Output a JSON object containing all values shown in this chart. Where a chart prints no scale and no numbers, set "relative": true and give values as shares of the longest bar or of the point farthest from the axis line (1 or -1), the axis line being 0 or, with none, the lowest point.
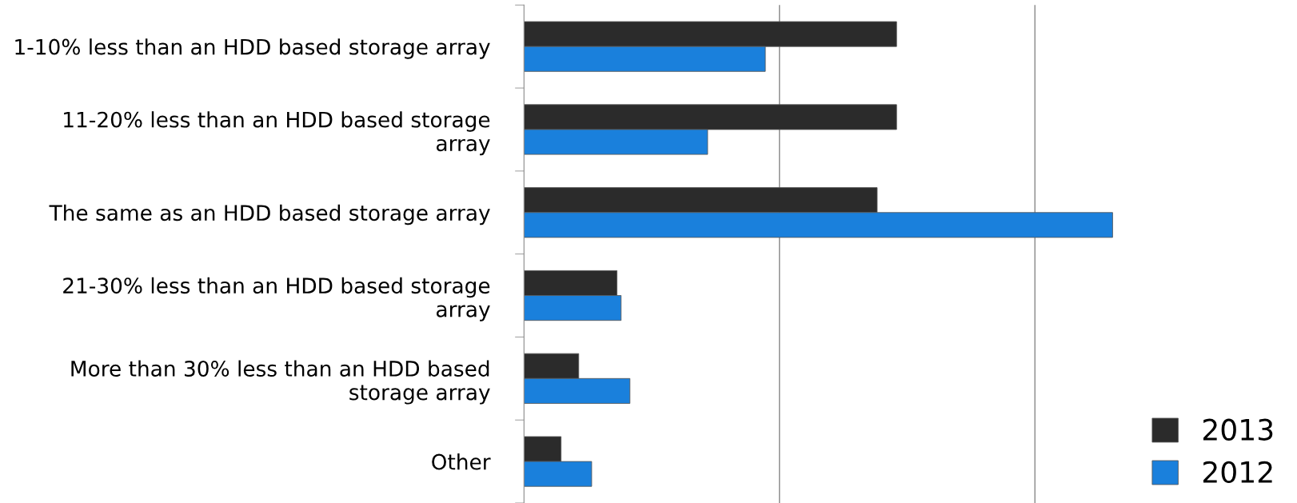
{
  "chart_data": {
    "type": "bar",
    "orientation": "horizontal",
    "relative": true,
    "categories": [
      "1-10% less than an HDD based storage array",
      "11-20% less than an HDD based storage array",
      "The same as an HDD based storage array",
      "21-30% less than an HDD based storage array",
      "More than 30% less than an HDD based storage array",
      "Other"
    ],
    "series": [
      {
        "name": "2013",
        "color": "#2b2b2b",
        "values": [
          0.633,
          0.633,
          0.6,
          0.158,
          0.093,
          0.063
        ]
      },
      {
        "name": "2012",
        "color": "#1a80dc",
        "values": [
          0.41,
          0.312,
          1.0,
          0.165,
          0.18,
          0.115
        ]
      }
    ],
    "ref_lines": [
      {
        "axis": "x",
        "value": 0.434,
        "color": "#888888"
      },
      {
        "axis": "x",
        "value": 0.868,
        "color": "#888888"
      }
    ],
    "legend": "bottom right"
  }
}
